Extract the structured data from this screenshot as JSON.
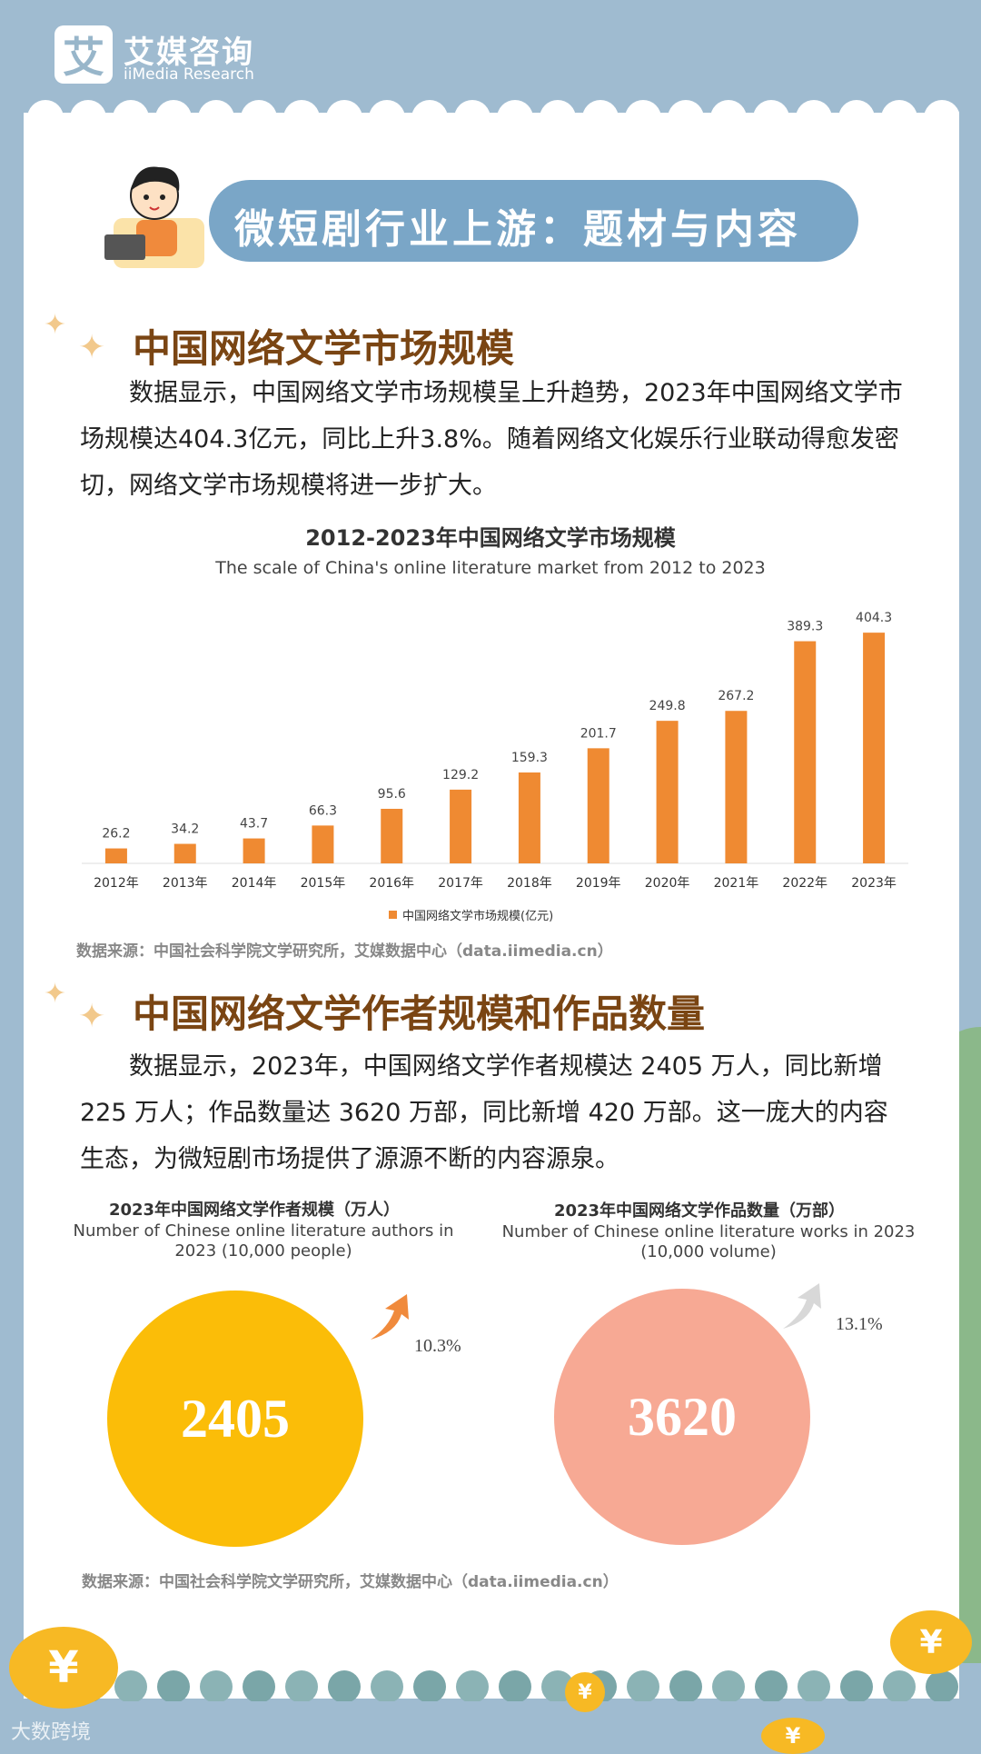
{
  "brand": {
    "logo_char": "艾",
    "name_cn": "艾媒咨询",
    "name_en": "iiMedia Research"
  },
  "banner": {
    "title": "微短剧行业上游：题材与内容"
  },
  "section1": {
    "title": "中国网络文学市场规模",
    "text": "数据显示，中国网络文学市场规模呈上升趋势，2023年中国网络文学市场规模达404.3亿元，同比上升3.8%。随着网络文化娱乐行业联动得愈发密切，网络文学市场规模将进一步扩大。"
  },
  "chart_data": {
    "type": "bar",
    "title": "2012-2023年中国网络文学市场规模",
    "subtitle": "The scale of China's online literature market from 2012 to 2023",
    "categories": [
      "2012年",
      "2013年",
      "2014年",
      "2015年",
      "2016年",
      "2017年",
      "2018年",
      "2019年",
      "2020年",
      "2021年",
      "2022年",
      "2023年"
    ],
    "series": [
      {
        "name": "中国网络文学市场规模(亿元)",
        "values": [
          26.2,
          34.2,
          43.7,
          66.3,
          95.6,
          129.2,
          159.3,
          201.7,
          249.8,
          267.2,
          389.3,
          404.3
        ]
      }
    ],
    "ylim": [
      0,
      430
    ],
    "grid": false,
    "legend": "bottom",
    "color": "#ef8a32"
  },
  "source1": "数据来源：中国社会科学院文学研究所，艾媒数据中心（data.iimedia.cn）",
  "section2": {
    "title": "中国网络文学作者规模和作品数量",
    "text": "数据显示，2023年，中国网络文学作者规模达 2405 万人，同比新增 225 万人；作品数量达 3620 万部，同比新增 420 万部。这一庞大的内容生态，为微短剧市场提供了源源不断的内容源泉。"
  },
  "stats": [
    {
      "title_cn": "2023年中国网络文学作者规模（万人）",
      "title_en": "Number of Chinese online literature authors in 2023 (10,000 people)",
      "value": "2405",
      "growth": "10.3%",
      "color": "#fbbd08"
    },
    {
      "title_cn": "2023年中国网络文学作品数量（万部）",
      "title_en": "Number of Chinese online literature works in 2023 (10,000 volume)",
      "value": "3620",
      "growth": "13.1%",
      "color": "#f7a994"
    }
  ],
  "source2": "数据来源：中国社会科学院文学研究所，艾媒数据中心（data.iimedia.cn）",
  "coin_symbol": "¥",
  "watermark": "大数跨境"
}
